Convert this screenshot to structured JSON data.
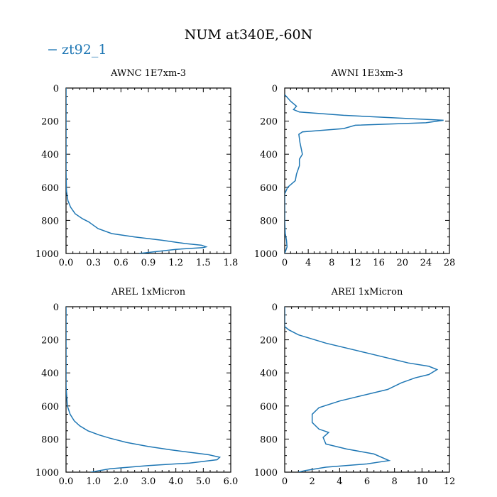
{
  "figure": {
    "title": "NUM at340E,-60N",
    "legend": {
      "dash": "−",
      "label": "zt92_1",
      "color": "#1f77b4"
    }
  },
  "chart_data": [
    {
      "type": "line",
      "title": "AWNC  1E7xm-3",
      "xlim": [
        0,
        1.8
      ],
      "ylim": [
        1000,
        0
      ],
      "xticks": [
        "0.0",
        "0.3",
        "0.6",
        "0.9",
        "1.2",
        "1.5",
        "1.8"
      ],
      "xtick_values": [
        0,
        0.3,
        0.6,
        0.9,
        1.2,
        1.5,
        1.8
      ],
      "yticks": [
        "0",
        "200",
        "400",
        "600",
        "800",
        "1000"
      ],
      "ytick_values": [
        0,
        200,
        400,
        600,
        800,
        1000
      ],
      "series": [
        {
          "x": [
            0,
            0,
            0.005,
            0.02,
            0.05,
            0.1,
            0.18,
            0.25,
            0.35,
            0.5,
            0.75,
            1.05,
            1.3,
            1.48,
            1.53,
            1.5,
            1.2,
            0.8
          ],
          "y": [
            0,
            500,
            620,
            680,
            720,
            760,
            790,
            810,
            850,
            880,
            900,
            920,
            940,
            950,
            960,
            965,
            975,
            1000
          ]
        }
      ]
    },
    {
      "type": "line",
      "title": "AWNI  1E3xm-3",
      "xlim": [
        0,
        28
      ],
      "ylim": [
        1000,
        0
      ],
      "xticks": [
        "0",
        "4",
        "8",
        "12",
        "16",
        "20",
        "24",
        "28"
      ],
      "xtick_values": [
        0,
        4,
        8,
        12,
        16,
        20,
        24,
        28
      ],
      "yticks": [
        "0",
        "200",
        "400",
        "600",
        "800",
        "1000"
      ],
      "ytick_values": [
        0,
        200,
        400,
        600,
        800,
        1000
      ],
      "series": [
        {
          "x": [
            0,
            1,
            2,
            1.5,
            2.5,
            10,
            27,
            24,
            12,
            10,
            3,
            2.4,
            2.6,
            3,
            2.5,
            2.5,
            2,
            1.8,
            0.5,
            0,
            0,
            0.1,
            0.3,
            0.4,
            0
          ],
          "y": [
            40,
            80,
            110,
            130,
            145,
            165,
            195,
            210,
            225,
            245,
            265,
            280,
            330,
            400,
            430,
            470,
            520,
            560,
            600,
            640,
            800,
            880,
            920,
            960,
            1000
          ]
        }
      ]
    },
    {
      "type": "line",
      "title": "AREL  1xMicron",
      "xlim": [
        0,
        6
      ],
      "ylim": [
        1000,
        0
      ],
      "xticks": [
        "0.0",
        "1.0",
        "2.0",
        "3.0",
        "4.0",
        "5.0",
        "6.0"
      ],
      "xtick_values": [
        0,
        1,
        2,
        3,
        4,
        5,
        6
      ],
      "yticks": [
        "0",
        "200",
        "400",
        "600",
        "800",
        "1000"
      ],
      "ytick_values": [
        0,
        200,
        400,
        600,
        800,
        1000
      ],
      "series": [
        {
          "x": [
            0,
            0,
            0.05,
            0.15,
            0.3,
            0.5,
            0.8,
            1.2,
            1.6,
            2.2,
            3.0,
            3.8,
            4.5,
            5.2,
            5.6,
            5.5,
            4.5,
            3.0,
            1.6,
            0.9
          ],
          "y": [
            0,
            480,
            600,
            650,
            690,
            720,
            750,
            775,
            795,
            820,
            845,
            865,
            880,
            895,
            910,
            925,
            945,
            960,
            980,
            1000
          ]
        }
      ]
    },
    {
      "type": "line",
      "title": "AREI  1xMicron",
      "xlim": [
        0,
        12
      ],
      "ylim": [
        1000,
        0
      ],
      "xticks": [
        "0",
        "2",
        "4",
        "6",
        "8",
        "10",
        "12"
      ],
      "xtick_values": [
        0,
        2,
        4,
        6,
        8,
        10,
        12
      ],
      "yticks": [
        "0",
        "200",
        "400",
        "600",
        "800",
        "1000"
      ],
      "ytick_values": [
        0,
        200,
        400,
        600,
        800,
        1000
      ],
      "series": [
        {
          "x": [
            0,
            0,
            0.3,
            1,
            3,
            6,
            9,
            10.5,
            11.1,
            10.5,
            9.5,
            8.5,
            7.5,
            4,
            2.5,
            2,
            2,
            2.5,
            3.2,
            2.8,
            3.0,
            4.5,
            6.5,
            7.6,
            6.0,
            3.0,
            1.5,
            1.0
          ],
          "y": [
            0,
            120,
            140,
            170,
            220,
            280,
            340,
            360,
            380,
            410,
            430,
            460,
            500,
            570,
            610,
            650,
            700,
            740,
            760,
            790,
            830,
            860,
            890,
            930,
            950,
            970,
            990,
            1000
          ]
        }
      ]
    }
  ]
}
